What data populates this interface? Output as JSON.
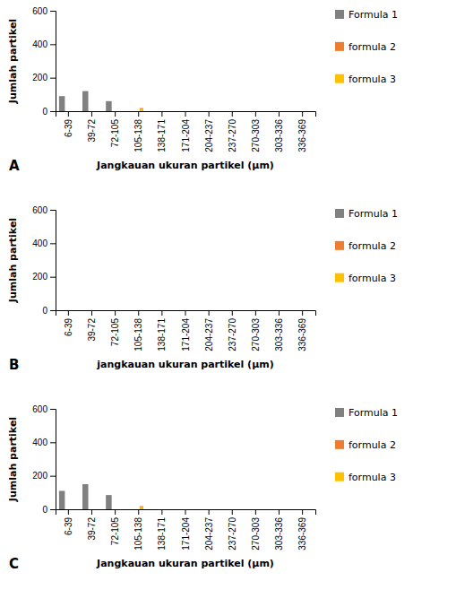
{
  "chart_data": [
    {
      "type": "bar",
      "title": "A",
      "xlabel": "Jangkauan ukuran partikel (μm)",
      "ylabel": "Jumlah partikel",
      "categories": [
        "6-39",
        "39-72",
        "72-105",
        "105-138",
        "138-171",
        "171-204",
        "204-237",
        "237-270",
        "270-303",
        "303-336",
        "336-369"
      ],
      "series": [
        {
          "name": "Formula 1",
          "color": "#808080",
          "values": [
            90,
            120,
            60,
            0,
            0,
            0,
            0,
            0,
            0,
            0,
            0
          ]
        },
        {
          "name": "formula 2",
          "color": "#ed7d31",
          "values": [
            0,
            0,
            0,
            0,
            0,
            0,
            0,
            0,
            0,
            0,
            0
          ]
        },
        {
          "name": "formula 3",
          "color": "#ffc000",
          "values": [
            0,
            0,
            0,
            0,
            0,
            0,
            0,
            0,
            0,
            0,
            0
          ]
        },
        {
          "type": "scatter",
          "marker": "square",
          "color": "#ed7d31",
          "values": [
            null,
            null,
            null,
            8,
            null,
            null,
            null,
            null,
            null,
            null,
            null
          ]
        },
        {
          "type": "scatter",
          "marker": "square",
          "color": "#ffc000",
          "values": [
            null,
            null,
            null,
            3,
            null,
            null,
            null,
            null,
            null,
            null,
            null
          ]
        }
      ],
      "ylim": [
        0,
        600
      ],
      "yticks": [
        0,
        200,
        400,
        600
      ],
      "grid": false
    },
    {
      "type": "bar",
      "title": "B",
      "xlabel": "jangkauan ukuran partikel (μm)",
      "ylabel": "Jumlah partikel",
      "categories": [
        "6-39",
        "39-72",
        "72-105",
        "105-138",
        "138-171",
        "171-204",
        "204-237",
        "237-270",
        "270-303",
        "303-336",
        "336-369"
      ],
      "series": [
        {
          "name": "Formula 1",
          "color": "#808080",
          "values": [
            0,
            0,
            0,
            0,
            0,
            0,
            0,
            0,
            0,
            0,
            0
          ]
        },
        {
          "name": "formula 2",
          "color": "#ed7d31",
          "values": [
            0,
            0,
            0,
            0,
            0,
            0,
            0,
            0,
            0,
            0,
            0
          ]
        },
        {
          "name": "formula 3",
          "color": "#ffc000",
          "values": [
            0,
            0,
            0,
            0,
            0,
            0,
            0,
            0,
            0,
            0,
            0
          ]
        }
      ],
      "ylim": [
        0,
        600
      ],
      "yticks": [
        0,
        200,
        400,
        600
      ],
      "grid": false
    },
    {
      "type": "bar",
      "title": "C",
      "xlabel": "Jangkauan ukuran partikel (μm)",
      "ylabel": "Jumlah partikel",
      "categories": [
        "6-39",
        "39-72",
        "72-105",
        "105-138",
        "138-171",
        "171-204",
        "204-237",
        "237-270",
        "270-303",
        "303-336",
        "336-369"
      ],
      "series": [
        {
          "name": "Formula 1",
          "color": "#808080",
          "values": [
            110,
            150,
            85,
            0,
            0,
            0,
            0,
            0,
            0,
            0,
            0
          ]
        },
        {
          "name": "formula 2",
          "color": "#ed7d31",
          "values": [
            0,
            0,
            0,
            0,
            0,
            0,
            0,
            0,
            0,
            0,
            0
          ]
        },
        {
          "name": "formula 3",
          "color": "#ffc000",
          "values": [
            0,
            0,
            0,
            0,
            0,
            0,
            0,
            0,
            0,
            0,
            0
          ]
        },
        {
          "type": "scatter",
          "marker": "square",
          "color": "#ed7d31",
          "values": [
            null,
            null,
            null,
            8,
            null,
            null,
            null,
            null,
            null,
            null,
            null
          ]
        },
        {
          "type": "scatter",
          "marker": "square",
          "color": "#ffc000",
          "values": [
            null,
            null,
            null,
            3,
            null,
            null,
            null,
            null,
            null,
            null,
            null
          ]
        }
      ],
      "ylim": [
        0,
        600
      ],
      "yticks": [
        0,
        200,
        400,
        600
      ],
      "grid": false
    }
  ]
}
